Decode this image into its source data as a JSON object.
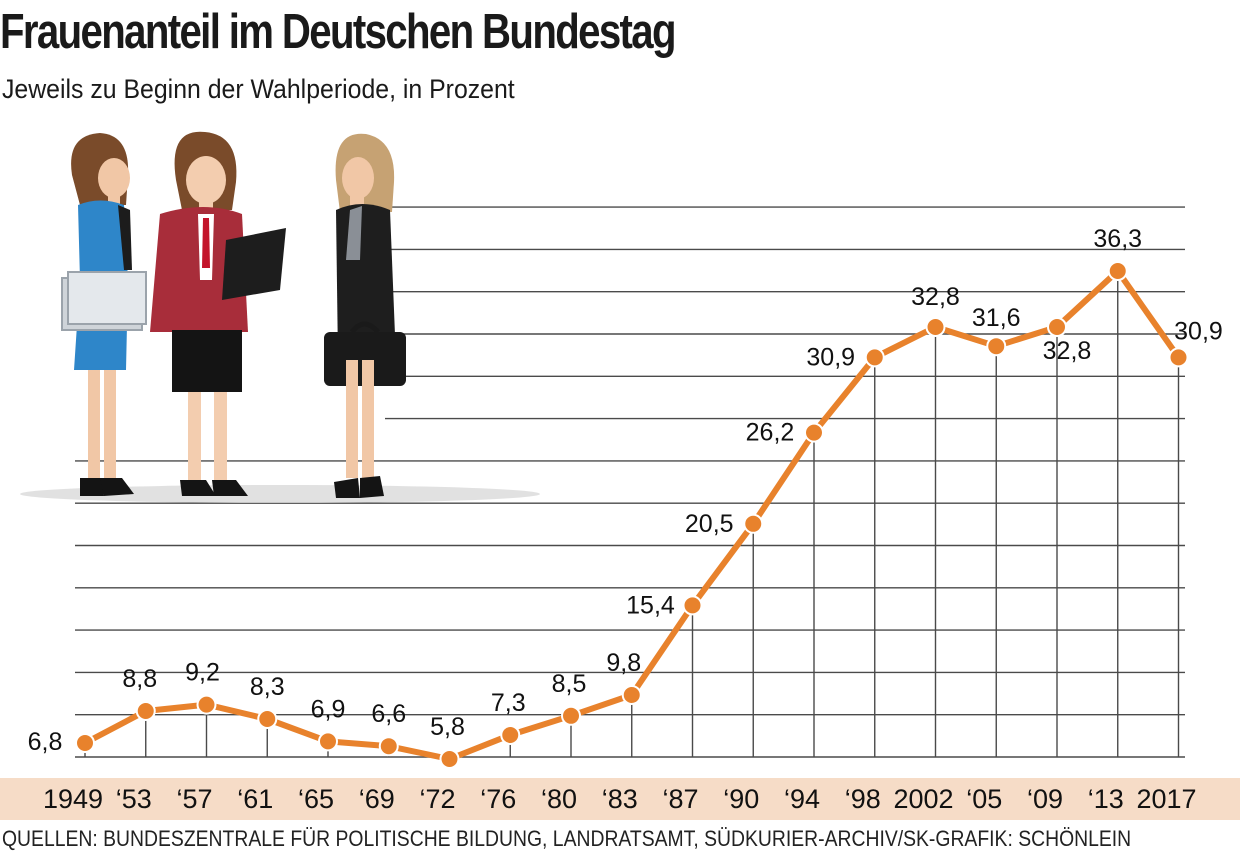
{
  "chart_data": {
    "type": "line",
    "title": "Frauenanteil im Deutschen Bundestag",
    "subtitle": "Jeweils zu Beginn der Wahlperiode, in Prozent",
    "source": "QUELLEN: BUNDESZENTRALE FÜR POLITISCHE BILDUNG, LANDRATSAMT, SÜDKURIER-ARCHIV/SK-GRAFIK: SCHÖNLEIN",
    "x": [
      1949,
      1953,
      1957,
      1961,
      1965,
      1969,
      1972,
      1976,
      1980,
      1983,
      1987,
      1990,
      1994,
      1998,
      2002,
      2005,
      2009,
      2013,
      2017
    ],
    "tick_labels": [
      "1949",
      "‘53",
      "‘57",
      "‘61",
      "‘65",
      "‘69",
      "‘72",
      "‘76",
      "‘80",
      "‘83",
      "‘87",
      "‘90",
      "‘94",
      "‘98",
      "2002",
      "‘05",
      "‘09",
      "‘13",
      "2017"
    ],
    "series": [
      {
        "values": [
          6.8,
          8.8,
          9.2,
          8.3,
          6.9,
          6.6,
          5.8,
          7.3,
          8.5,
          9.8,
          15.4,
          20.5,
          26.2,
          30.9,
          32.8,
          31.6,
          32.8,
          36.3,
          30.9
        ],
        "value_labels": [
          "6,8",
          "8,8",
          "9,2",
          "8,3",
          "6,9",
          "6,6",
          "5,8",
          "7,3",
          "8,5",
          "9,8",
          "15,4",
          "20,5",
          "26,2",
          "30,9",
          "32,8",
          "31,6",
          "32,8",
          "36,3",
          "30,9"
        ]
      }
    ],
    "ylim": [
      0,
      40
    ],
    "grid": true,
    "colors": {
      "line": "#e8822c",
      "marker": "#e8822c",
      "grid": "#4a4a4a",
      "axis_band": "#f6dcc7"
    },
    "illustration": "three-businesswomen-illustration"
  }
}
